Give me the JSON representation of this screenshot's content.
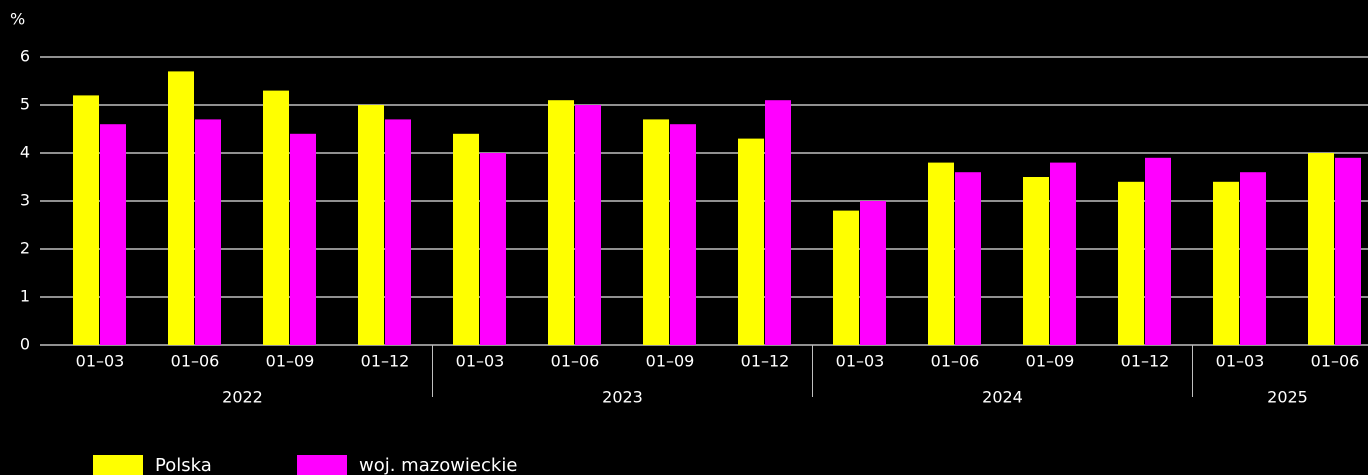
{
  "chart_data": {
    "type": "bar",
    "y_label": "%",
    "groups": [
      {
        "label": "2022",
        "categories": [
          "01–03",
          "01–06",
          "01–09",
          "01–12"
        ]
      },
      {
        "label": "2023",
        "categories": [
          "01–03",
          "01–06",
          "01–09",
          "01–12"
        ]
      },
      {
        "label": "2024",
        "categories": [
          "01–03",
          "01–06",
          "01–09",
          "01–12"
        ]
      },
      {
        "label": "2025",
        "categories": [
          "01–03",
          "01–06"
        ]
      }
    ],
    "series": [
      {
        "name": "Polska",
        "color": "#ffff00",
        "values": [
          5.2,
          5.7,
          5.3,
          5.0,
          4.4,
          5.1,
          4.7,
          4.3,
          2.8,
          3.8,
          3.5,
          3.4,
          3.4,
          4.0
        ]
      },
      {
        "name": "woj. mazowieckie",
        "color": "#ff00ff",
        "values": [
          4.6,
          4.7,
          4.4,
          4.7,
          4.0,
          5.0,
          4.6,
          5.1,
          3.0,
          3.6,
          3.8,
          3.9,
          3.6,
          3.9
        ]
      }
    ],
    "ylim": [
      0,
      6
    ],
    "yticks": [
      0,
      1,
      2,
      3,
      4,
      5,
      6
    ],
    "grid": true,
    "legend": "bottom"
  }
}
